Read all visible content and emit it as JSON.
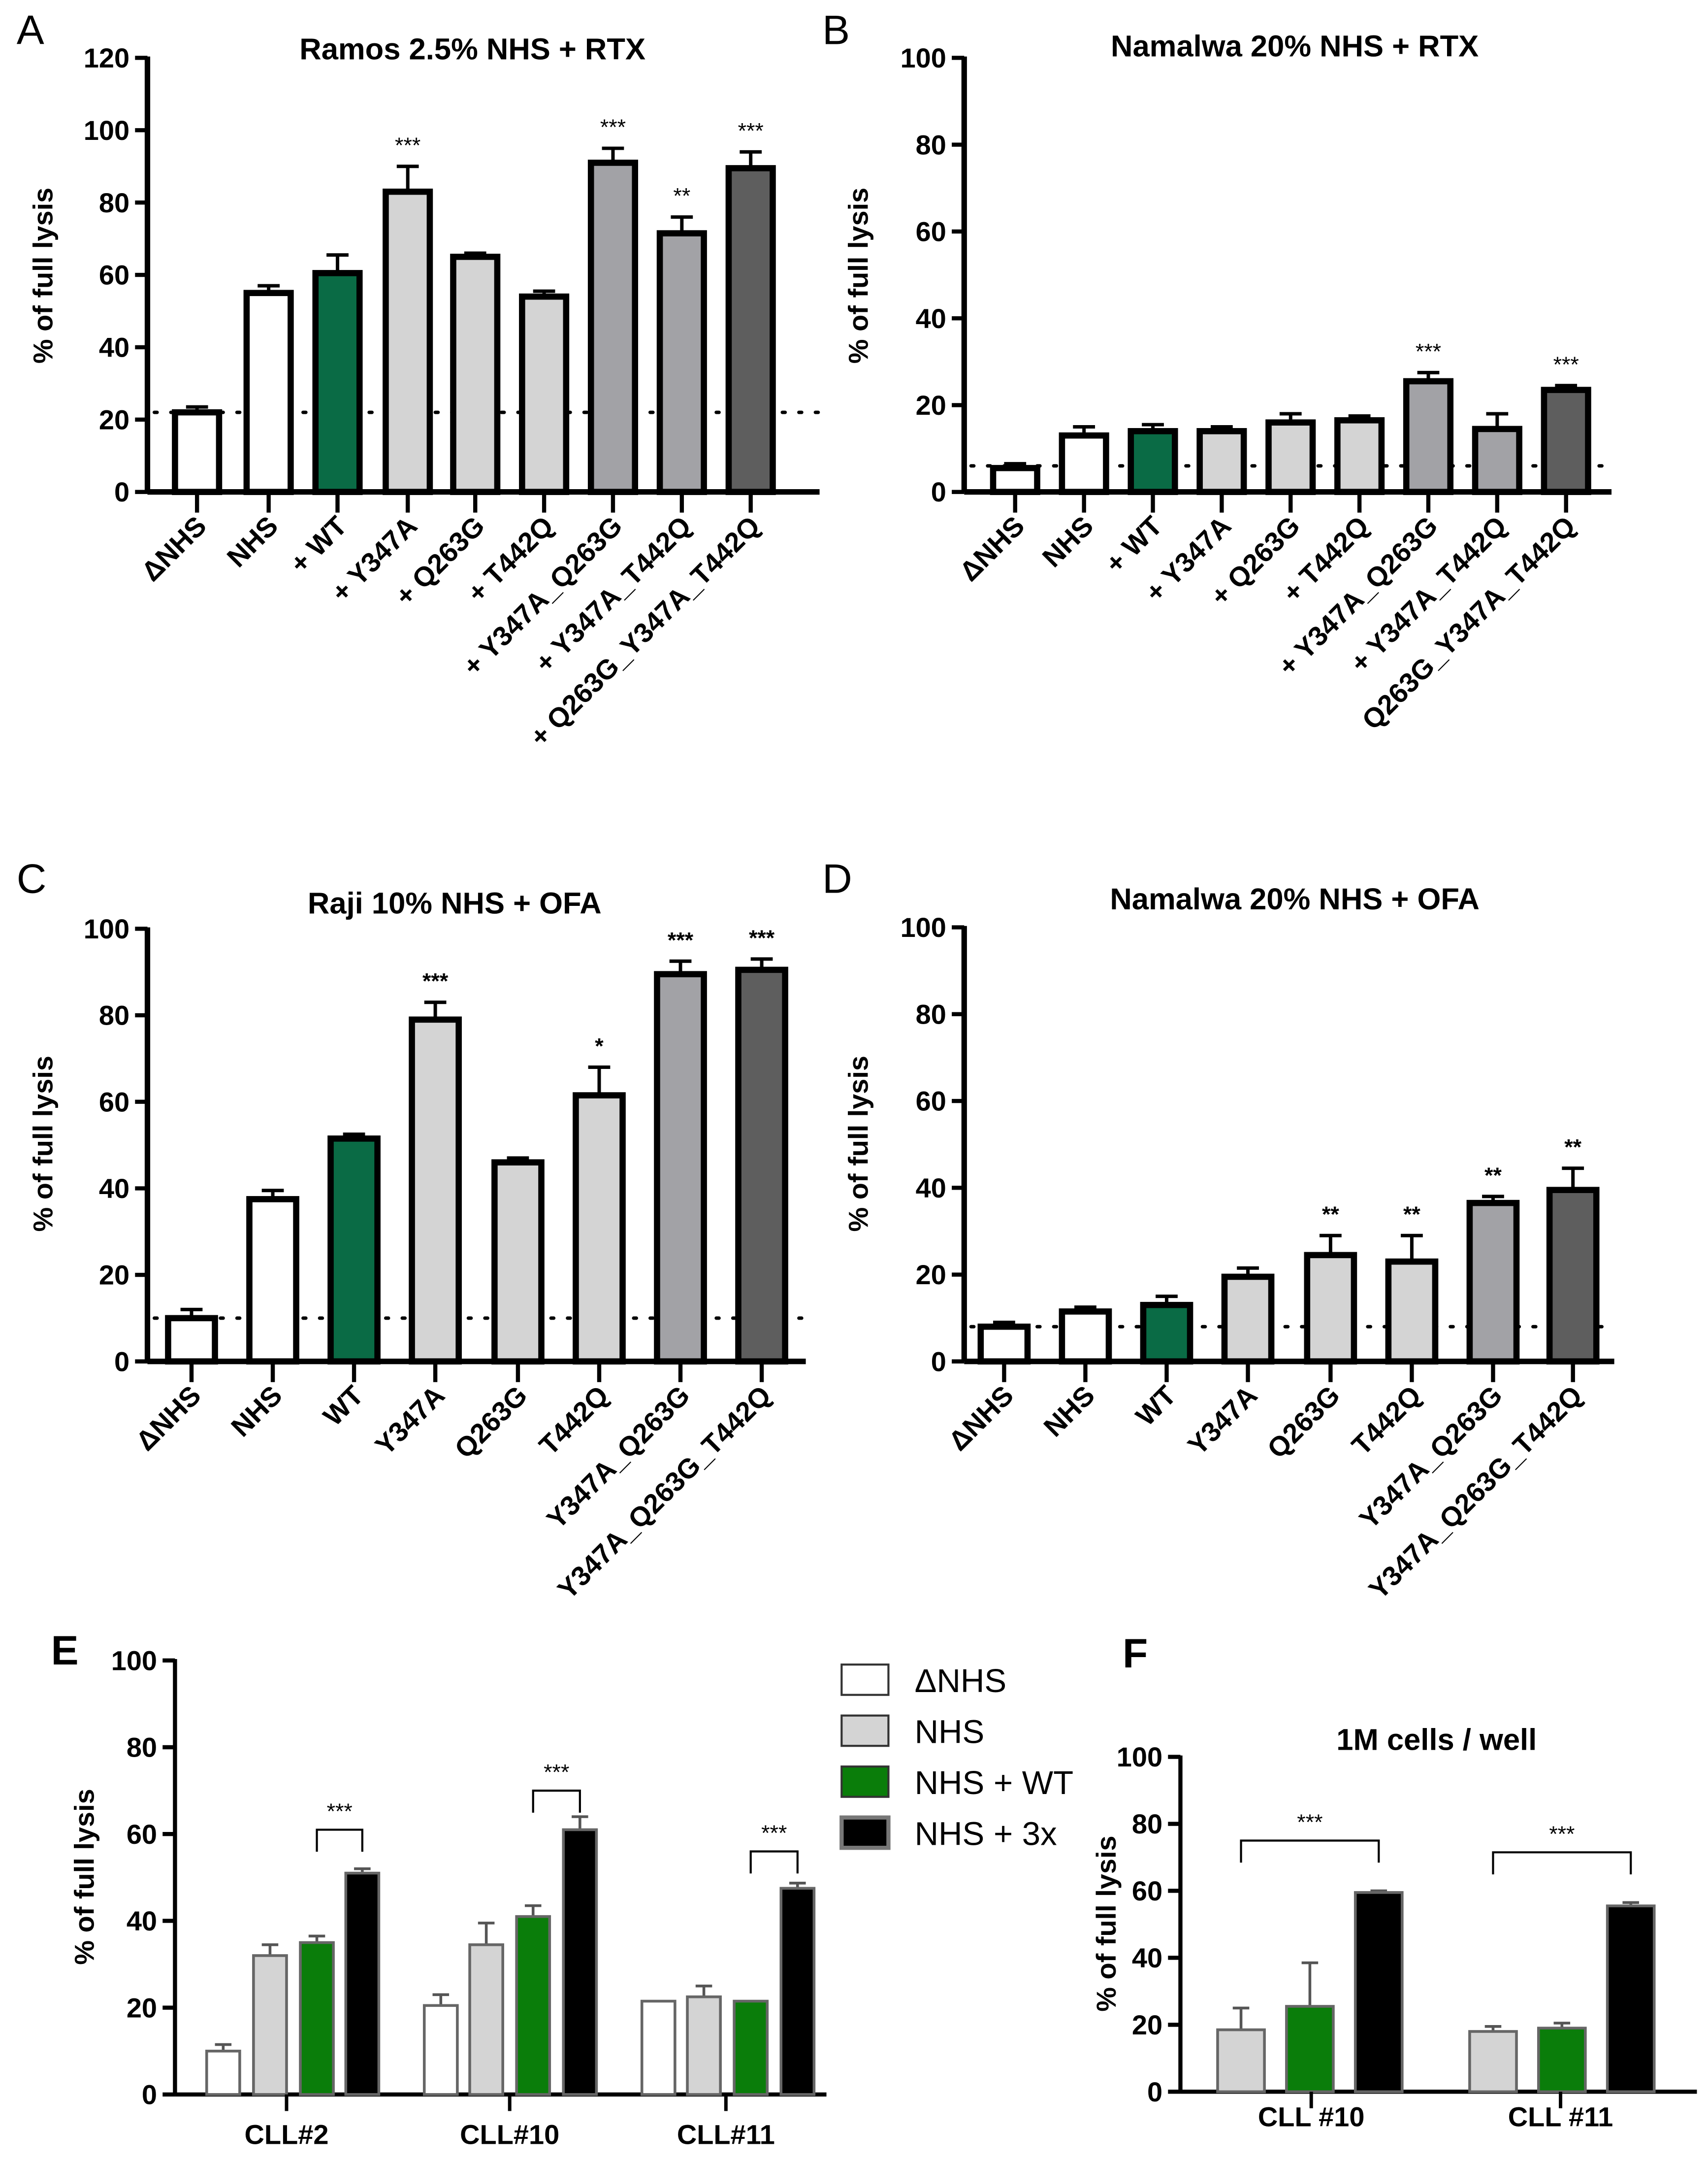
{
  "chart_data": [
    {
      "panel": "A",
      "type": "bar",
      "title": "Ramos 2.5% NHS + RTX",
      "ylabel": "% of full lysis",
      "ylim": [
        0,
        120
      ],
      "yticks": [
        0,
        20,
        40,
        60,
        80,
        100,
        120
      ],
      "baseline": 22,
      "categories": [
        "ΔNHS",
        "NHS",
        "+ WT",
        "+ Y347A",
        "+ Q263G",
        "+ T442Q",
        "+ Y347A_Q263G",
        "+ Y347A_T442Q",
        "+ Q263G_Y347A_T442Q"
      ],
      "values": [
        22,
        55,
        60.5,
        83,
        65,
        54,
        91,
        71.5,
        89.5
      ],
      "errors": [
        1.5,
        2,
        5,
        7,
        1,
        1.5,
        4,
        4.5,
        4.5
      ],
      "significance": [
        "",
        "",
        "",
        "***",
        "",
        "",
        "***",
        "**",
        "***"
      ],
      "colors": [
        "#ffffff",
        "#ffffff",
        "#0a6b45",
        "#d4d4d4",
        "#d4d4d4",
        "#d4d4d4",
        "#a2a2a6",
        "#a2a2a6",
        "#5e5e5e"
      ]
    },
    {
      "panel": "B",
      "type": "bar",
      "title": "Namalwa 20% NHS + RTX",
      "ylabel": "% of full lysis",
      "ylim": [
        0,
        100
      ],
      "yticks": [
        0,
        20,
        40,
        60,
        80,
        100
      ],
      "baseline": 6,
      "categories": [
        "ΔNHS",
        "NHS",
        "+ WT",
        "+ Y347A",
        "+ Q263G",
        "+ T442Q",
        "+ Y347A_Q263G",
        "+ Y347A_T442Q",
        "Q263G_Y347A_T442Q"
      ],
      "values": [
        5.5,
        13,
        14,
        14,
        16,
        16.5,
        25.5,
        14.5,
        23.5
      ],
      "errors": [
        1,
        2,
        1.5,
        1,
        2,
        1,
        2,
        3.5,
        1
      ],
      "significance": [
        "",
        "",
        "",
        "",
        "",
        "",
        "***",
        "",
        "***"
      ],
      "colors": [
        "#ffffff",
        "#ffffff",
        "#0a6b45",
        "#d4d4d4",
        "#d4d4d4",
        "#d4d4d4",
        "#a2a2a6",
        "#a2a2a6",
        "#5e5e5e"
      ]
    },
    {
      "panel": "C",
      "type": "bar",
      "title": "Raji 10% NHS + OFA",
      "ylabel": "% of full lysis",
      "ylim": [
        0,
        100
      ],
      "yticks": [
        0,
        20,
        40,
        60,
        80,
        100
      ],
      "baseline": 10,
      "categories": [
        "ΔNHS",
        "NHS",
        "WT",
        "Y347A",
        "Q263G",
        "T442Q",
        "Y347A_Q263G",
        "Y347A_Q263G_T442Q"
      ],
      "values": [
        10,
        37.5,
        51.5,
        79,
        46,
        61.5,
        89.5,
        90.5
      ],
      "errors": [
        2,
        2,
        1,
        4,
        1,
        6.5,
        3,
        2.5
      ],
      "significance": [
        "",
        "",
        "",
        "***",
        "",
        "*",
        "***",
        "***"
      ],
      "colors": [
        "#ffffff",
        "#ffffff",
        "#0a6b45",
        "#d4d4d4",
        "#d4d4d4",
        "#d4d4d4",
        "#a2a2a6",
        "#5e5e5e"
      ]
    },
    {
      "panel": "D",
      "type": "bar",
      "title": "Namalwa 20% NHS + OFA",
      "ylabel": "% of full lysis",
      "ylim": [
        0,
        100
      ],
      "yticks": [
        0,
        20,
        40,
        60,
        80,
        100
      ],
      "baseline": 8,
      "categories": [
        "ΔNHS",
        "NHS",
        "WT",
        "Y347A",
        "Q263G",
        "T442Q",
        "Y347A_Q263G",
        "Y347A_Q263G_T442Q"
      ],
      "values": [
        8,
        11.5,
        13,
        19.5,
        24.5,
        23,
        36.5,
        39.5
      ],
      "errors": [
        1,
        1,
        2,
        2,
        4.5,
        6,
        1.5,
        5
      ],
      "significance": [
        "",
        "",
        "",
        "",
        "**",
        "**",
        "**",
        "**"
      ],
      "colors": [
        "#ffffff",
        "#ffffff",
        "#0a6b45",
        "#d4d4d4",
        "#d4d4d4",
        "#d4d4d4",
        "#a2a2a6",
        "#5e5e5e"
      ]
    },
    {
      "panel": "E",
      "type": "bar",
      "title": "",
      "ylabel": "% of full lysis",
      "ylim": [
        0,
        100
      ],
      "yticks": [
        0,
        20,
        40,
        60,
        80,
        100
      ],
      "categories": [
        "CLL#2",
        "CLL#10",
        "CLL#11"
      ],
      "legend": {
        "placement": "right",
        "entries": [
          "ΔNHS",
          "NHS",
          "NHS + WT",
          "NHS + 3x"
        ]
      },
      "series": [
        {
          "name": "ΔNHS",
          "color": "#ffffff",
          "values": [
            10,
            20.5,
            21.5
          ],
          "errors": [
            1.5,
            2.5,
            0
          ]
        },
        {
          "name": "NHS",
          "color": "#d4d4d4",
          "values": [
            32,
            34.5,
            22.5
          ],
          "errors": [
            2.5,
            5,
            2.5
          ]
        },
        {
          "name": "NHS + WT",
          "color": "#0a7d0a",
          "values": [
            35,
            41,
            21.5
          ],
          "errors": [
            1.5,
            2.5,
            0
          ]
        },
        {
          "name": "NHS + 3x",
          "color": "#000000",
          "values": [
            51,
            61,
            47.5
          ],
          "errors": [
            1,
            3,
            1.2
          ]
        }
      ],
      "comparisons": [
        {
          "group": 0,
          "between": [
            "NHS + WT",
            "NHS + 3x"
          ],
          "label": "***",
          "level": 61
        },
        {
          "group": 1,
          "between": [
            "NHS + WT",
            "NHS + 3x"
          ],
          "label": "***",
          "level": 70
        },
        {
          "group": 2,
          "between": [
            "NHS + WT",
            "NHS + 3x"
          ],
          "label": "***",
          "level": 56
        }
      ]
    },
    {
      "panel": "F",
      "type": "bar",
      "title": "1M cells / well",
      "ylabel": "% of full lysis",
      "ylim": [
        0,
        100
      ],
      "yticks": [
        0,
        20,
        40,
        60,
        80,
        100
      ],
      "categories": [
        "CLL #10",
        "CLL #11"
      ],
      "series": [
        {
          "name": "NHS",
          "color": "#d4d4d4",
          "values": [
            18.5,
            18
          ],
          "errors": [
            6.5,
            1.5
          ]
        },
        {
          "name": "NHS + WT",
          "color": "#0a7d0a",
          "values": [
            25.5,
            19
          ],
          "errors": [
            13,
            1.5
          ]
        },
        {
          "name": "NHS + 3x",
          "color": "#000000",
          "values": [
            59.5,
            55.5
          ],
          "errors": [
            0.5,
            1
          ]
        }
      ],
      "comparisons": [
        {
          "group": 0,
          "between": [
            "NHS",
            "NHS + 3x"
          ],
          "label": "***",
          "level": 75
        },
        {
          "group": 1,
          "between": [
            "NHS",
            "NHS + 3x"
          ],
          "label": "***",
          "level": 71.5
        }
      ]
    }
  ]
}
